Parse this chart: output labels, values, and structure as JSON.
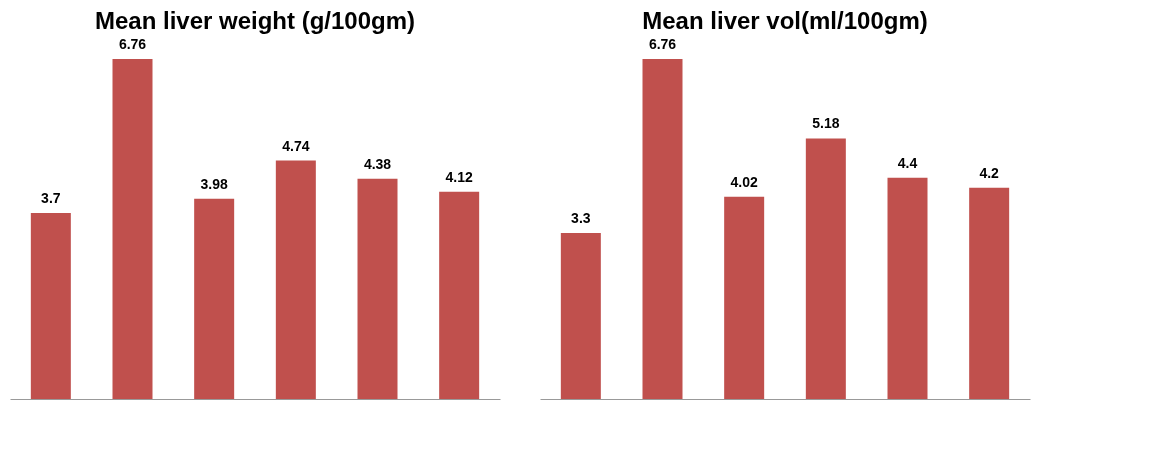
{
  "chart_data": [
    {
      "type": "bar",
      "title": "Mean liver weight (g/100gm)",
      "categories": [
        null,
        null,
        null,
        null,
        null,
        null
      ],
      "values": [
        3.7,
        6.76,
        3.98,
        4.74,
        4.38,
        4.12
      ],
      "color": "#c0504d",
      "data_labels": true,
      "tick_labels": false,
      "grid": false,
      "legend": false
    },
    {
      "type": "bar",
      "title": "Mean liver vol(ml/100gm)",
      "categories": [
        null,
        null,
        null,
        null,
        null,
        null
      ],
      "values": [
        3.3,
        6.76,
        4.02,
        5.18,
        4.4,
        4.2
      ],
      "color": "#c0504d",
      "data_labels": true,
      "tick_labels": false,
      "grid": false,
      "legend": false
    }
  ]
}
